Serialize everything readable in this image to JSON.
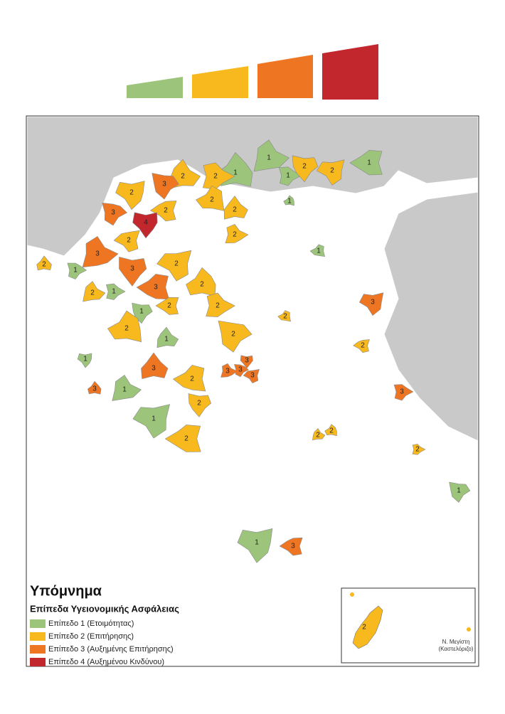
{
  "legend": {
    "title": "Υπόμνημα",
    "subtitle": "Επίπεδα Υγειονομικής Ασφάλειας",
    "items": [
      {
        "label": "Επίπεδο 1 (Ετοιμότητας)",
        "color": "#9cc47a"
      },
      {
        "label": "Επίπεδο 2 (Επιτήρησης)",
        "color": "#f7b91e"
      },
      {
        "label": "Επίπεδο 3 (Αυξημένης Επιτήρησης)",
        "color": "#ee7623"
      },
      {
        "label": "Επίπεδο 4 (Αυξημένου Κινδύνου)",
        "color": "#c1272d"
      }
    ]
  },
  "map": {
    "regions": [
      "1",
      "1",
      "1",
      "2",
      "2",
      "1",
      "1",
      "2",
      "2",
      "3",
      "2",
      "2",
      "2",
      "2",
      "2",
      "3",
      "4",
      "2",
      "1",
      "2",
      "3",
      "1",
      "3",
      "2",
      "3",
      "2",
      "2",
      "1",
      "1",
      "3",
      "2",
      "2",
      "1",
      "2",
      "2",
      "1",
      "2",
      "2",
      "3",
      "3",
      "3",
      "3",
      "3",
      "2",
      "3",
      "1",
      "3",
      "2",
      "1",
      "2",
      "2",
      "2",
      "2",
      "1",
      "1",
      "3"
    ]
  },
  "inset": {
    "label": "2",
    "place_name": "Ν. Μεγίστη",
    "place_note": "(Καστελόριζο)"
  }
}
